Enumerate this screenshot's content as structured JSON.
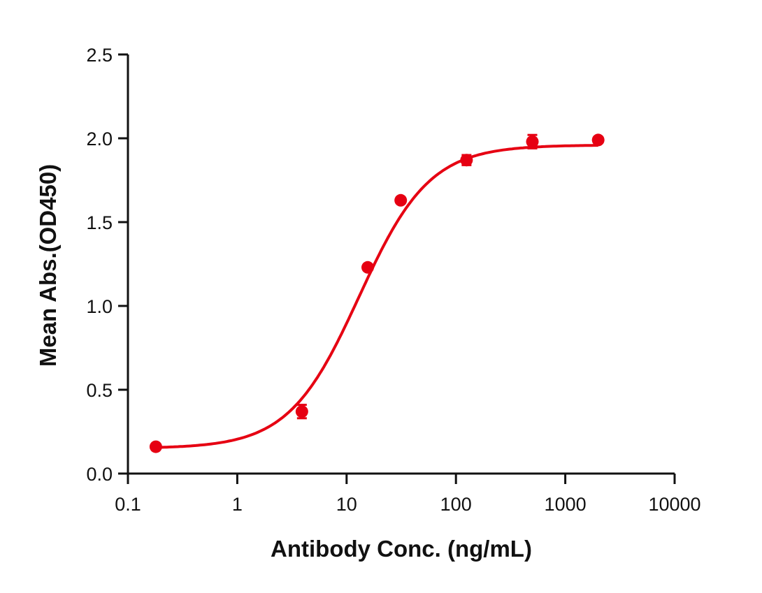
{
  "chart_data": {
    "type": "scatter",
    "title": "",
    "xlabel": "Antibody Conc. (ng/mL)",
    "ylabel": "Mean Abs.(OD450)",
    "xscale": "log",
    "xlim": [
      0.1,
      10000
    ],
    "ylim": [
      0.0,
      2.5
    ],
    "x_ticks": [
      "0.1",
      "1",
      "10",
      "100",
      "1000",
      "10000"
    ],
    "y_ticks": [
      "0.0",
      "0.5",
      "1.0",
      "1.5",
      "2.0",
      "2.5"
    ],
    "grid": false,
    "legend": null,
    "color": "#e60012",
    "series": [
      {
        "name": "Mean Abs.",
        "x": [
          0.18,
          3.9,
          15.6,
          31.25,
          125,
          500,
          2000
        ],
        "y": [
          0.16,
          0.37,
          1.23,
          1.63,
          1.87,
          1.98,
          1.99
        ],
        "error": [
          0.01,
          0.04,
          0.01,
          0.01,
          0.03,
          0.04,
          0.01
        ],
        "fit": "4PL sigmoidal curve",
        "fit_params": {
          "bottom": 0.15,
          "top": 1.96,
          "ec50": 13.0,
          "hill": 1.35
        }
      }
    ]
  }
}
